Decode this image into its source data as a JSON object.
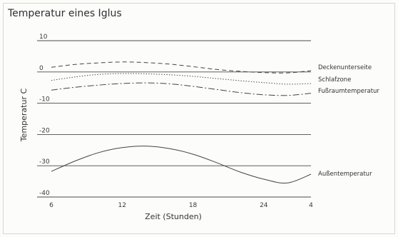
{
  "chart_data": {
    "type": "line",
    "title": "Temperatur eines Iglus",
    "xlabel": "Zeit (Stunden)",
    "ylabel": "Temperatur C",
    "x_tick_labels": [
      "6",
      "12",
      "18",
      "24",
      "4"
    ],
    "x_tick_hours": [
      6,
      12,
      18,
      24,
      28
    ],
    "xlim": [
      6,
      28
    ],
    "y_ticks": [
      10,
      0,
      -10,
      -20,
      -30,
      -40
    ],
    "ylim": [
      -40,
      10
    ],
    "grid": true,
    "legend": "labels at line ends (right)",
    "series": [
      {
        "name": "Deckenunterseite",
        "style": "dashed",
        "x": [
          6,
          8,
          10,
          12,
          14,
          16,
          18,
          20,
          22,
          24,
          26,
          28
        ],
        "y": [
          1.5,
          2.4,
          2.9,
          3.2,
          3.0,
          2.5,
          1.7,
          0.8,
          0.2,
          -0.2,
          -0.3,
          0.4
        ]
      },
      {
        "name": "Schlafzone",
        "style": "dotted",
        "x": [
          6,
          8,
          10,
          12,
          14,
          16,
          18,
          20,
          22,
          24,
          26,
          28
        ],
        "y": [
          -2.7,
          -1.6,
          -0.8,
          -0.5,
          -0.6,
          -0.9,
          -1.4,
          -2.1,
          -2.8,
          -3.4,
          -3.9,
          -3.7
        ]
      },
      {
        "name": "Fußraumtemperatur",
        "style": "dashdot",
        "x": [
          6,
          8,
          10,
          12,
          14,
          16,
          18,
          20,
          22,
          24,
          26,
          28
        ],
        "y": [
          -5.8,
          -4.9,
          -4.2,
          -3.7,
          -3.5,
          -3.8,
          -4.6,
          -5.6,
          -6.6,
          -7.3,
          -7.5,
          -6.8
        ]
      },
      {
        "name": "Außentemperatur",
        "style": "solid",
        "x": [
          6,
          8,
          10,
          12,
          14,
          16,
          18,
          20,
          22,
          24,
          26,
          28
        ],
        "y": [
          -31.8,
          -28.5,
          -25.8,
          -24.2,
          -23.7,
          -24.5,
          -26.3,
          -29.0,
          -32.0,
          -34.3,
          -35.5,
          -32.7
        ]
      }
    ]
  }
}
